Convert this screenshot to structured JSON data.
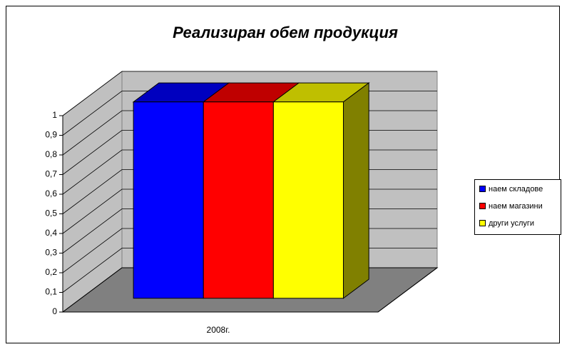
{
  "chart_data": {
    "type": "bar3d",
    "title": "Реализиран обем продукция",
    "categories": [
      "2008г."
    ],
    "series": [
      {
        "name": "наем складове",
        "color": "#0000ff",
        "values": [
          1
        ]
      },
      {
        "name": "наем магазини",
        "color": "#ff0000",
        "values": [
          1
        ]
      },
      {
        "name": "други услуги",
        "color": "#ffff00",
        "values": [
          1
        ]
      }
    ],
    "ylim": [
      0,
      1
    ],
    "yticks": [
      0,
      {
        "value": 0.1,
        "label": "0,1"
      },
      {
        "value": 0.2,
        "label": "0,2"
      },
      {
        "value": 0.3,
        "label": "0,3"
      },
      {
        "value": 0.4,
        "label": "0,4"
      },
      {
        "value": 0.5,
        "label": "0,5"
      },
      {
        "value": 0.6,
        "label": "0,6"
      },
      {
        "value": 0.7,
        "label": "0,7"
      },
      {
        "value": 0.8,
        "label": "0,8"
      },
      {
        "value": 0.9,
        "label": "0,9"
      },
      1
    ],
    "grid": true,
    "legend": "right"
  }
}
